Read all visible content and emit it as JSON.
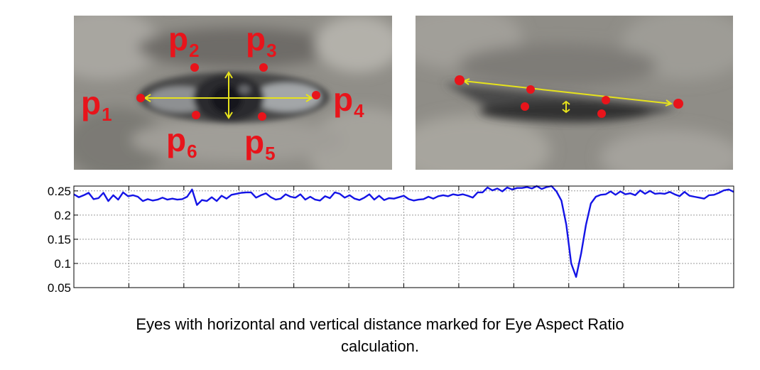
{
  "panels": {
    "open_eye": {
      "labels": [
        {
          "letter": "p",
          "index": "1"
        },
        {
          "letter": "p",
          "index": "2"
        },
        {
          "letter": "p",
          "index": "3"
        },
        {
          "letter": "p",
          "index": "4"
        },
        {
          "letter": "p",
          "index": "5"
        },
        {
          "letter": "p",
          "index": "6"
        }
      ]
    },
    "closed_eye": {}
  },
  "colors": {
    "landmark": "#e8141b",
    "measure_line": "#e6e21c",
    "series": "#1414e6"
  },
  "chart_data": {
    "type": "line",
    "title": "",
    "xlabel": "",
    "ylabel": "",
    "ylim": [
      0.05,
      0.26
    ],
    "yticks": [
      "0.25",
      "0.2",
      "0.15",
      "0.1",
      "0.05"
    ],
    "ytick_values": [
      0.25,
      0.2,
      0.15,
      0.1,
      0.05
    ],
    "xticks_count": 12,
    "grid": true,
    "series": [
      {
        "name": "EAR",
        "color": "#1414e6",
        "values": [
          0.243,
          0.237,
          0.241,
          0.246,
          0.233,
          0.235,
          0.246,
          0.229,
          0.241,
          0.232,
          0.247,
          0.239,
          0.241,
          0.238,
          0.229,
          0.233,
          0.23,
          0.232,
          0.236,
          0.232,
          0.234,
          0.232,
          0.233,
          0.238,
          0.253,
          0.221,
          0.231,
          0.229,
          0.237,
          0.229,
          0.24,
          0.234,
          0.242,
          0.244,
          0.246,
          0.247,
          0.247,
          0.236,
          0.241,
          0.245,
          0.237,
          0.232,
          0.234,
          0.243,
          0.238,
          0.236,
          0.243,
          0.232,
          0.238,
          0.232,
          0.23,
          0.239,
          0.235,
          0.247,
          0.244,
          0.236,
          0.241,
          0.234,
          0.231,
          0.236,
          0.243,
          0.232,
          0.24,
          0.231,
          0.235,
          0.234,
          0.237,
          0.24,
          0.233,
          0.23,
          0.232,
          0.233,
          0.238,
          0.234,
          0.239,
          0.241,
          0.239,
          0.243,
          0.241,
          0.243,
          0.24,
          0.236,
          0.247,
          0.247,
          0.257,
          0.251,
          0.255,
          0.249,
          0.257,
          0.253,
          0.256,
          0.256,
          0.258,
          0.255,
          0.26,
          0.254,
          0.258,
          0.26,
          0.249,
          0.23,
          0.18,
          0.1,
          0.072,
          0.12,
          0.18,
          0.224,
          0.238,
          0.242,
          0.243,
          0.249,
          0.242,
          0.249,
          0.243,
          0.245,
          0.241,
          0.251,
          0.244,
          0.25,
          0.244,
          0.245,
          0.244,
          0.248,
          0.243,
          0.239,
          0.248,
          0.24,
          0.238,
          0.236,
          0.234,
          0.241,
          0.242,
          0.246,
          0.251,
          0.253,
          0.248
        ]
      }
    ]
  },
  "caption": {
    "line1": "Eyes with horizontal and vertical distance marked for Eye Aspect Ratio",
    "line2": "calculation."
  }
}
